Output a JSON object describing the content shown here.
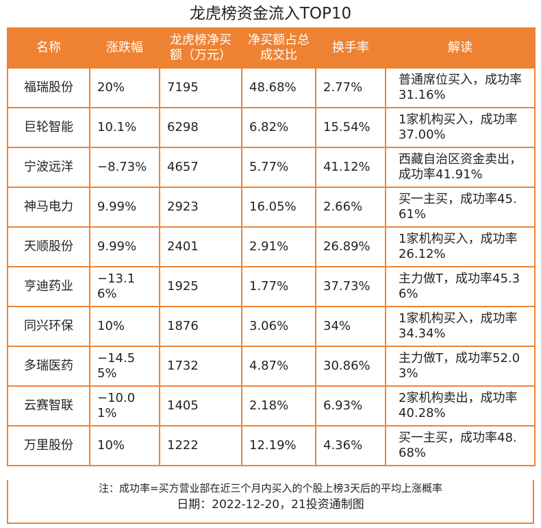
{
  "header": {
    "title": "龙虎榜资金流入TOP10"
  },
  "table": {
    "columns": [
      "名称",
      "涨跌幅",
      "龙虎榜净买额（万元）",
      "净买额占总成交比",
      "换手率",
      "解读"
    ],
    "rows": [
      [
        "福瑞股份",
        "20%",
        "7195",
        "48.68%",
        "2.77%",
        "普通席位买入，成功率31.16%"
      ],
      [
        "巨轮智能",
        "10.1%",
        "6298",
        "6.82%",
        "15.54%",
        "1家机构买入，成功率37.00%"
      ],
      [
        "宁波远洋",
        "−8.73%",
        "4657",
        "5.77%",
        "41.12%",
        "西藏自治区资金卖出，成功率41.91%"
      ],
      [
        "神马电力",
        "9.99%",
        "2923",
        "16.05%",
        "2.66%",
        "买一主买，成功率45.61%"
      ],
      [
        "天顺股份",
        "9.99%",
        "2401",
        "2.91%",
        "26.89%",
        "1家机构买入，成功率26.12%"
      ],
      [
        "亨迪药业",
        "−13.16%",
        "1925",
        "1.77%",
        "37.73%",
        "主力做T，成功率45.36%"
      ],
      [
        "同兴环保",
        "10%",
        "1876",
        "3.06%",
        "34%",
        "1家机构买入，成功率34.34%"
      ],
      [
        "多瑞医药",
        "−14.55%",
        "1732",
        "4.87%",
        "30.86%",
        "主力做T，成功率52.03%"
      ],
      [
        "云赛智联",
        "−10.01%",
        "1405",
        "2.18%",
        "6.93%",
        "2家机构卖出，成功率40.28%"
      ],
      [
        "万里股份",
        "10%",
        "1222",
        "12.19%",
        "4.36%",
        "买一主买，成功率48.68%"
      ]
    ]
  },
  "footer": {
    "note": "注：成功率=买方营业部在近三个月内买入的个股上榜3天后的平均上涨概率",
    "date": "日期：2022-12-20，21投资通制图"
  }
}
